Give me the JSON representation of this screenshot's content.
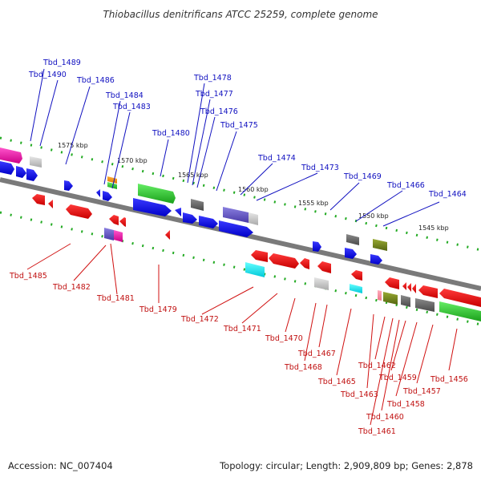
{
  "title": "Thiobacillus denitrificans ATCC 25259, complete genome",
  "footer": {
    "accession": "Accession: NC_007404",
    "info": "Topology: circular; Length: 2,909,809 bp; Genes: 2,878"
  },
  "ruler_labels": [
    "1575 kbp",
    "1570 kbp",
    "1565 kbp",
    "1560 kbp",
    "1555 kbp",
    "1550 kbp",
    "1545 kbp"
  ],
  "top_genes": [
    "Tbd_1489",
    "Tbd_1490",
    "Tbd_1486",
    "Tbd_1484",
    "Tbd_1483",
    "Tbd_1480",
    "Tbd_1478",
    "Tbd_1477",
    "Tbd_1476",
    "Tbd_1475",
    "Tbd_1474",
    "Tbd_1473",
    "Tbd_1469",
    "Tbd_1466",
    "Tbd_1464"
  ],
  "bottom_genes": [
    "Tbd_1485",
    "Tbd_1482",
    "Tbd_1481",
    "Tbd_1479",
    "Tbd_1472",
    "Tbd_1471",
    "Tbd_1470",
    "Tbd_1468",
    "Tbd_1467",
    "Tbd_1465",
    "Tbd_1463",
    "Tbd_1462",
    "Tbd_1461",
    "Tbd_1460",
    "Tbd_1459",
    "Tbd_1458",
    "Tbd_1457",
    "Tbd_1456"
  ],
  "colors": {
    "forward": "#1a1aee",
    "reverse": "#ee1111",
    "backbone": "#7a7a7a",
    "ruler": "#22aa22",
    "top_label": "#1010c0",
    "bottom_label": "#c01010"
  }
}
